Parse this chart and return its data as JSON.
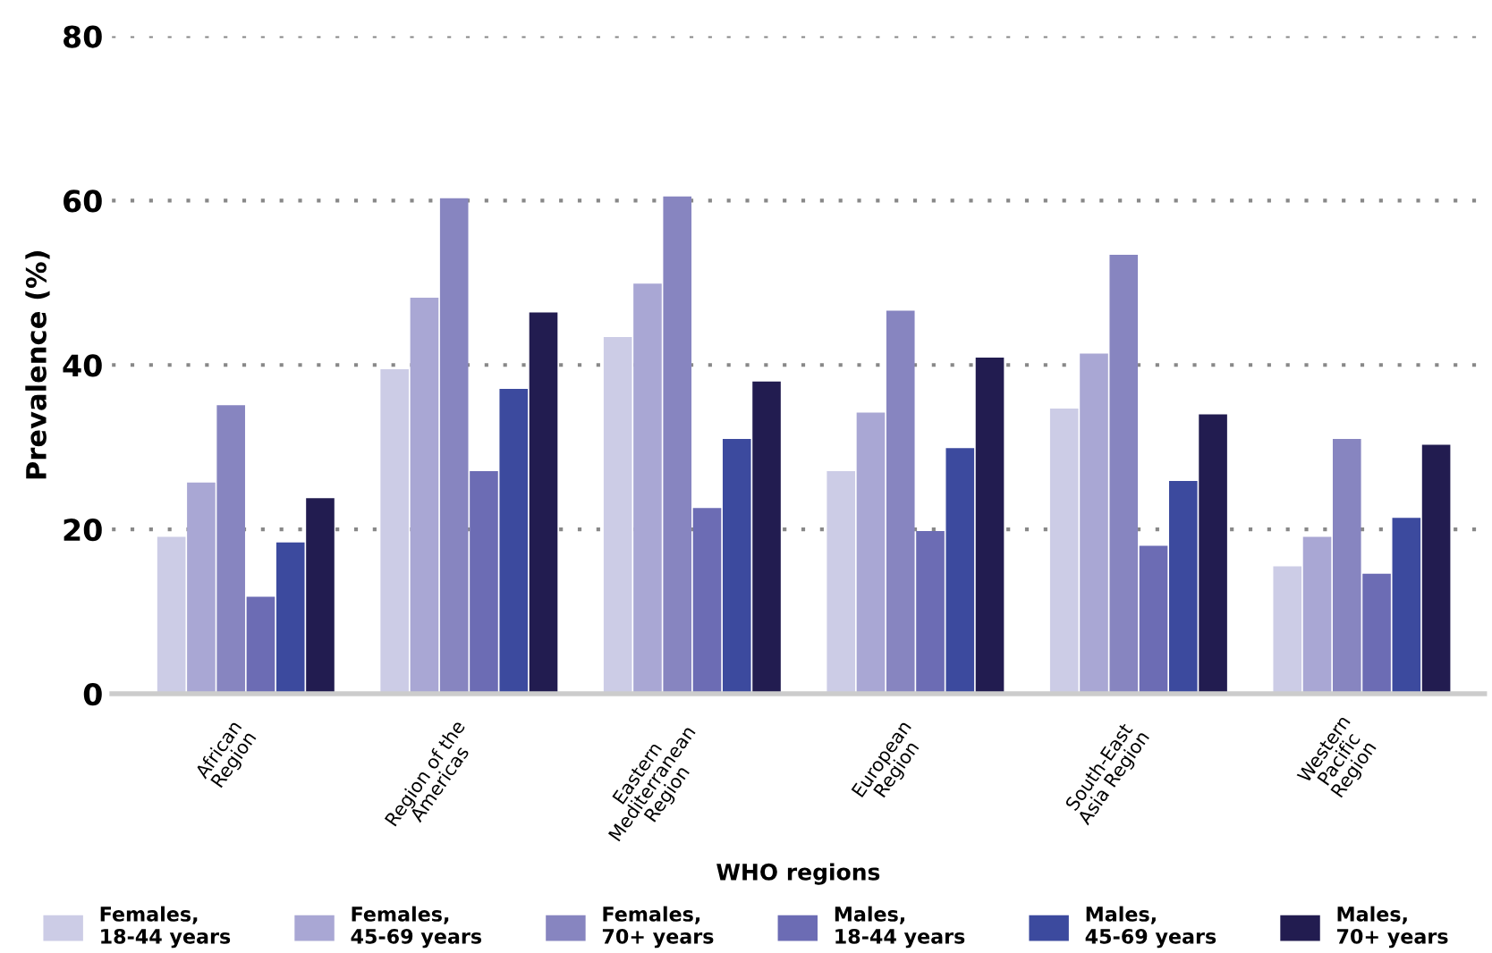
{
  "chart_data": {
    "type": "bar",
    "ylabel": "Prevalence (%)",
    "xlabel": "WHO regions",
    "categories": [
      "African\nRegion",
      "Region of the\nAmericas",
      "Eastern\nMediterranean\nRegion",
      "European\nRegion",
      "South-East\nAsia Region",
      "Western\nPacific\nRegion"
    ],
    "series": [
      {
        "name": "Females,\n18-44 years",
        "color": "#cccce6",
        "values": [
          19.1,
          39.5,
          43.4,
          27.1,
          34.7,
          15.5
        ]
      },
      {
        "name": "Females,\n45-69 years",
        "color": "#a9a7d4",
        "values": [
          25.7,
          48.2,
          49.9,
          34.2,
          41.4,
          19.1
        ]
      },
      {
        "name": "Females,\n70+ years",
        "color": "#8785c0",
        "values": [
          35.1,
          60.3,
          60.5,
          46.6,
          53.4,
          31.0
        ]
      },
      {
        "name": "Males,\n18-44 years",
        "color": "#6c6cb4",
        "values": [
          11.8,
          27.1,
          22.6,
          19.8,
          18.0,
          14.6
        ]
      },
      {
        "name": "Males,\n45-69 years",
        "color": "#3c4a9e",
        "values": [
          18.4,
          37.1,
          31.0,
          29.9,
          25.9,
          21.4
        ]
      },
      {
        "name": "Males,\n70+ years",
        "color": "#221c50",
        "values": [
          23.8,
          46.4,
          38.0,
          40.9,
          34.0,
          30.3
        ]
      }
    ],
    "ylim": [
      0,
      80
    ],
    "yticks": [
      0,
      20,
      40,
      60,
      80
    ],
    "grid": "y",
    "legend": "bottom"
  }
}
